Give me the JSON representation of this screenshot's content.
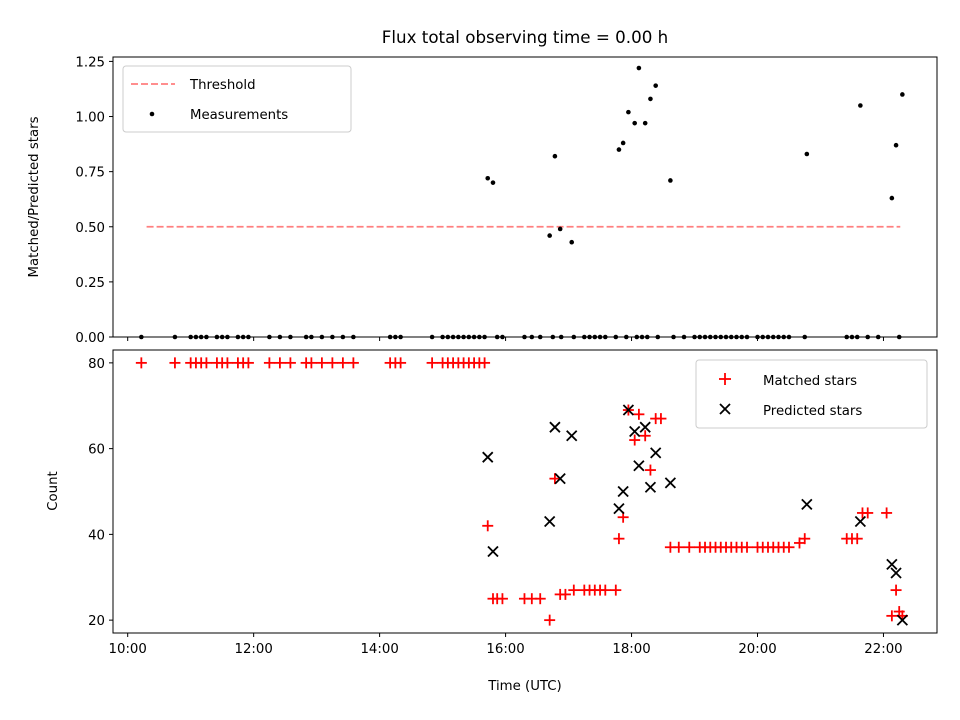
{
  "figure": {
    "title": "Flux total observing time = 0.00 h"
  },
  "chart_data": [
    {
      "type": "scatter",
      "ylabel": "Matched/Predicted stars",
      "xlabel": "",
      "xlim": [
        "09:46",
        "22:51"
      ],
      "ylim": [
        0,
        1.27
      ],
      "xticks": [
        "10:00",
        "12:00",
        "14:00",
        "16:00",
        "18:00",
        "20:00",
        "22:00"
      ],
      "yticks": [
        "0.00",
        "0.25",
        "0.50",
        "0.75",
        "1.00",
        "1.25"
      ],
      "legend": {
        "position": "upper-left",
        "entries": [
          "Threshold",
          "Measurements"
        ]
      },
      "threshold": {
        "name": "Threshold",
        "y": 0.5,
        "x_start": "10:18",
        "x_end": "22:16",
        "color": "#ff7f7f",
        "style": "dashed"
      },
      "series": [
        {
          "name": "Measurements",
          "color": "#000000",
          "marker": "dot",
          "points": [
            [
              "10:13",
              0
            ],
            [
              "10:45",
              0
            ],
            [
              "11:00",
              0
            ],
            [
              "11:05",
              0
            ],
            [
              "11:10",
              0
            ],
            [
              "11:15",
              0
            ],
            [
              "11:25",
              0
            ],
            [
              "11:30",
              0
            ],
            [
              "11:35",
              0
            ],
            [
              "11:45",
              0
            ],
            [
              "11:50",
              0
            ],
            [
              "11:55",
              0
            ],
            [
              "12:15",
              0
            ],
            [
              "12:25",
              0
            ],
            [
              "12:35",
              0
            ],
            [
              "12:50",
              0
            ],
            [
              "12:55",
              0
            ],
            [
              "13:05",
              0
            ],
            [
              "13:15",
              0
            ],
            [
              "13:25",
              0
            ],
            [
              "13:35",
              0
            ],
            [
              "14:10",
              0
            ],
            [
              "14:15",
              0
            ],
            [
              "14:20",
              0
            ],
            [
              "14:50",
              0
            ],
            [
              "15:00",
              0
            ],
            [
              "15:05",
              0
            ],
            [
              "15:10",
              0
            ],
            [
              "15:15",
              0
            ],
            [
              "15:20",
              0
            ],
            [
              "15:25",
              0
            ],
            [
              "15:30",
              0
            ],
            [
              "15:35",
              0
            ],
            [
              "15:40",
              0
            ],
            [
              "15:52",
              0
            ],
            [
              "15:57",
              0
            ],
            [
              "16:18",
              0
            ],
            [
              "16:25",
              0
            ],
            [
              "16:33",
              0
            ],
            [
              "16:45",
              0
            ],
            [
              "16:53",
              0
            ],
            [
              "17:05",
              0
            ],
            [
              "17:15",
              0
            ],
            [
              "17:20",
              0
            ],
            [
              "17:25",
              0
            ],
            [
              "17:30",
              0
            ],
            [
              "17:35",
              0
            ],
            [
              "17:45",
              0
            ],
            [
              "17:55",
              0
            ],
            [
              "18:05",
              0
            ],
            [
              "18:10",
              0
            ],
            [
              "18:15",
              0
            ],
            [
              "18:25",
              0
            ],
            [
              "18:40",
              0
            ],
            [
              "18:50",
              0
            ],
            [
              "19:00",
              0
            ],
            [
              "19:05",
              0
            ],
            [
              "19:10",
              0
            ],
            [
              "19:15",
              0
            ],
            [
              "19:20",
              0
            ],
            [
              "19:25",
              0
            ],
            [
              "19:30",
              0
            ],
            [
              "19:35",
              0
            ],
            [
              "19:40",
              0
            ],
            [
              "19:45",
              0
            ],
            [
              "19:50",
              0
            ],
            [
              "20:00",
              0
            ],
            [
              "20:05",
              0
            ],
            [
              "20:10",
              0
            ],
            [
              "20:15",
              0
            ],
            [
              "20:20",
              0
            ],
            [
              "20:25",
              0
            ],
            [
              "20:30",
              0
            ],
            [
              "20:45",
              0
            ],
            [
              "21:25",
              0
            ],
            [
              "21:30",
              0
            ],
            [
              "21:35",
              0
            ],
            [
              "21:45",
              0
            ],
            [
              "21:55",
              0
            ],
            [
              "22:15",
              0
            ],
            [
              "15:43",
              0.72
            ],
            [
              "15:48",
              0.7
            ],
            [
              "16:42",
              0.46
            ],
            [
              "16:47",
              0.82
            ],
            [
              "16:52",
              0.49
            ],
            [
              "17:03",
              0.43
            ],
            [
              "17:48",
              0.85
            ],
            [
              "17:52",
              0.88
            ],
            [
              "17:57",
              1.02
            ],
            [
              "18:03",
              0.97
            ],
            [
              "18:07",
              1.22
            ],
            [
              "18:13",
              0.97
            ],
            [
              "18:18",
              1.08
            ],
            [
              "18:23",
              1.14
            ],
            [
              "18:37",
              0.71
            ],
            [
              "20:47",
              0.83
            ],
            [
              "21:38",
              1.05
            ],
            [
              "22:08",
              0.63
            ],
            [
              "22:12",
              0.87
            ],
            [
              "22:18",
              1.1
            ]
          ]
        }
      ]
    },
    {
      "type": "scatter",
      "xlabel": "Time (UTC)",
      "ylabel": "Count",
      "xlim": [
        "09:46",
        "22:51"
      ],
      "ylim": [
        17,
        83
      ],
      "xticks": [
        "10:00",
        "12:00",
        "14:00",
        "16:00",
        "18:00",
        "20:00",
        "22:00"
      ],
      "yticks": [
        "20",
        "40",
        "60",
        "80"
      ],
      "legend": {
        "position": "upper-right",
        "entries": [
          "Matched stars",
          "Predicted stars"
        ]
      },
      "series": [
        {
          "name": "Matched stars",
          "color": "#ff0000",
          "marker": "plus",
          "points": [
            [
              "10:13",
              80
            ],
            [
              "10:45",
              80
            ],
            [
              "11:00",
              80
            ],
            [
              "11:05",
              80
            ],
            [
              "11:10",
              80
            ],
            [
              "11:15",
              80
            ],
            [
              "11:25",
              80
            ],
            [
              "11:30",
              80
            ],
            [
              "11:35",
              80
            ],
            [
              "11:45",
              80
            ],
            [
              "11:50",
              80
            ],
            [
              "11:55",
              80
            ],
            [
              "12:15",
              80
            ],
            [
              "12:25",
              80
            ],
            [
              "12:35",
              80
            ],
            [
              "12:50",
              80
            ],
            [
              "12:55",
              80
            ],
            [
              "13:05",
              80
            ],
            [
              "13:15",
              80
            ],
            [
              "13:25",
              80
            ],
            [
              "13:35",
              80
            ],
            [
              "14:10",
              80
            ],
            [
              "14:15",
              80
            ],
            [
              "14:20",
              80
            ],
            [
              "14:50",
              80
            ],
            [
              "15:00",
              80
            ],
            [
              "15:05",
              80
            ],
            [
              "15:10",
              80
            ],
            [
              "15:15",
              80
            ],
            [
              "15:20",
              80
            ],
            [
              "15:25",
              80
            ],
            [
              "15:30",
              80
            ],
            [
              "15:35",
              80
            ],
            [
              "15:40",
              80
            ],
            [
              "15:43",
              42
            ],
            [
              "15:48",
              25
            ],
            [
              "15:52",
              25
            ],
            [
              "15:57",
              25
            ],
            [
              "16:18",
              25
            ],
            [
              "16:25",
              25
            ],
            [
              "16:33",
              25
            ],
            [
              "16:42",
              20
            ],
            [
              "16:47",
              53
            ],
            [
              "16:52",
              26
            ],
            [
              "16:57",
              26
            ],
            [
              "17:05",
              27
            ],
            [
              "17:15",
              27
            ],
            [
              "17:20",
              27
            ],
            [
              "17:25",
              27
            ],
            [
              "17:30",
              27
            ],
            [
              "17:35",
              27
            ],
            [
              "17:45",
              27
            ],
            [
              "17:48",
              39
            ],
            [
              "17:52",
              44
            ],
            [
              "17:57",
              69
            ],
            [
              "18:03",
              62
            ],
            [
              "18:07",
              68
            ],
            [
              "18:13",
              63
            ],
            [
              "18:18",
              55
            ],
            [
              "18:23",
              67
            ],
            [
              "18:28",
              67
            ],
            [
              "18:37",
              37
            ],
            [
              "18:45",
              37
            ],
            [
              "18:55",
              37
            ],
            [
              "19:05",
              37
            ],
            [
              "19:10",
              37
            ],
            [
              "19:15",
              37
            ],
            [
              "19:20",
              37
            ],
            [
              "19:25",
              37
            ],
            [
              "19:30",
              37
            ],
            [
              "19:35",
              37
            ],
            [
              "19:40",
              37
            ],
            [
              "19:45",
              37
            ],
            [
              "19:50",
              37
            ],
            [
              "20:00",
              37
            ],
            [
              "20:05",
              37
            ],
            [
              "20:10",
              37
            ],
            [
              "20:15",
              37
            ],
            [
              "20:20",
              37
            ],
            [
              "20:25",
              37
            ],
            [
              "20:30",
              37
            ],
            [
              "20:40",
              38
            ],
            [
              "20:45",
              39
            ],
            [
              "21:25",
              39
            ],
            [
              "21:30",
              39
            ],
            [
              "21:35",
              39
            ],
            [
              "21:40",
              45
            ],
            [
              "21:45",
              45
            ],
            [
              "22:03",
              45
            ],
            [
              "22:08",
              21
            ],
            [
              "22:12",
              27
            ],
            [
              "22:15",
              22
            ],
            [
              "22:18",
              21
            ]
          ]
        },
        {
          "name": "Predicted stars",
          "color": "#000000",
          "marker": "x",
          "points": [
            [
              "15:43",
              58
            ],
            [
              "15:48",
              36
            ],
            [
              "16:42",
              43
            ],
            [
              "16:47",
              65
            ],
            [
              "16:52",
              53
            ],
            [
              "17:03",
              63
            ],
            [
              "17:48",
              46
            ],
            [
              "17:52",
              50
            ],
            [
              "17:57",
              69
            ],
            [
              "18:03",
              64
            ],
            [
              "18:07",
              56
            ],
            [
              "18:13",
              65
            ],
            [
              "18:18",
              51
            ],
            [
              "18:23",
              59
            ],
            [
              "18:37",
              52
            ],
            [
              "20:47",
              47
            ],
            [
              "21:38",
              43
            ],
            [
              "22:08",
              33
            ],
            [
              "22:12",
              31
            ],
            [
              "22:18",
              20
            ]
          ]
        }
      ]
    }
  ]
}
